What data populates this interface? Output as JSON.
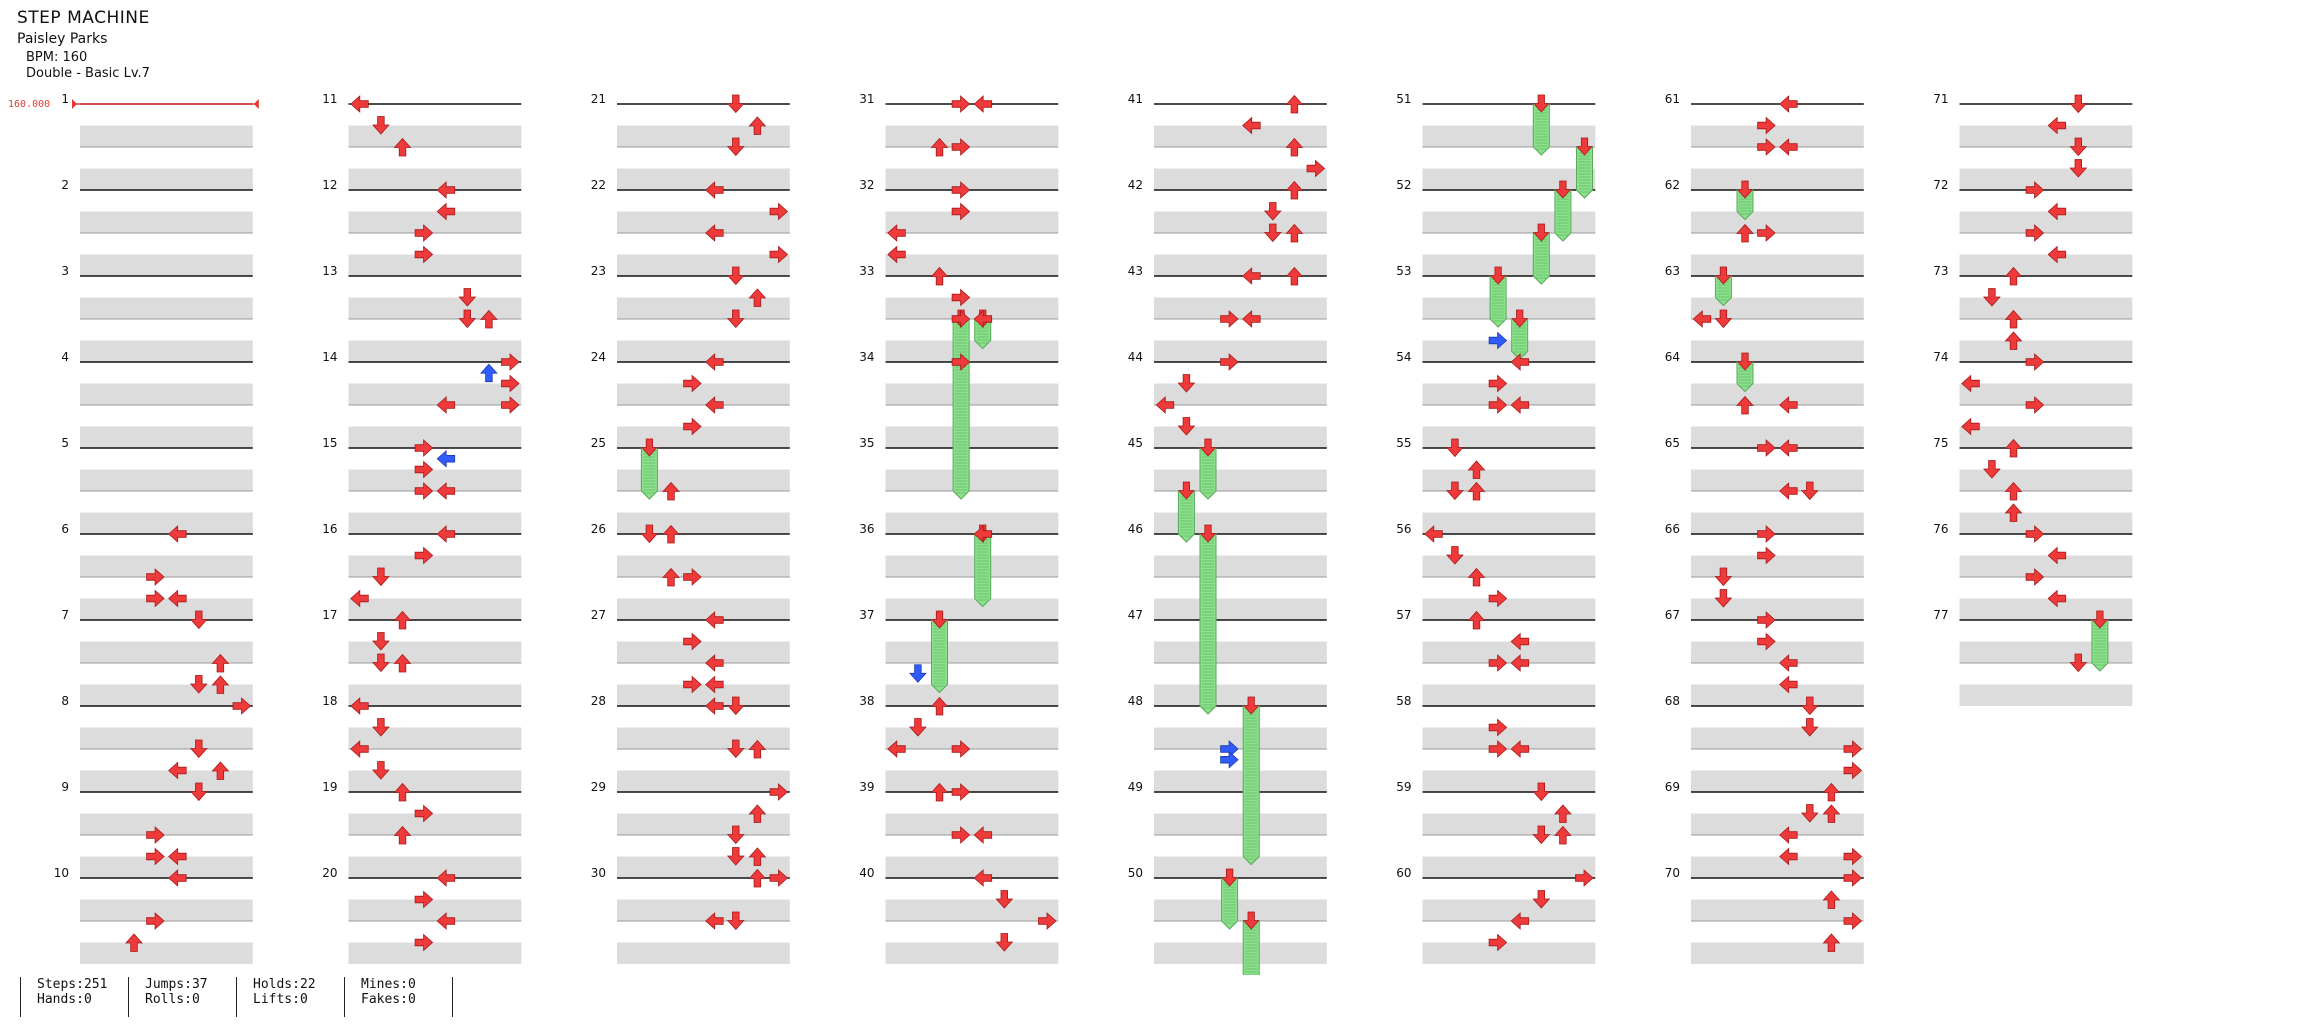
{
  "header": {
    "title": "STEP MACHINE",
    "song": "Paisley Parks",
    "bpm": "BPM: 160",
    "difficulty": "Double - Basic Lv.7"
  },
  "bpm_marker": "160.000",
  "colors": {
    "arrow_red": "#ee3a3a",
    "arrow_blue": "#2f5bff",
    "hold_green": "#8be08b",
    "row_shade": "#dcdcdc",
    "measure_line": "#111111",
    "bpm_red": "#e53935"
  },
  "lanes": 8,
  "measures_total": 77,
  "measures_per_column": 10,
  "notes": [
    {
      "m": 6,
      "r": 0,
      "l": [
        4
      ]
    },
    {
      "m": 6,
      "r": 1,
      "l": [
        3
      ]
    },
    {
      "m": 6,
      "r": 1.5,
      "l": [
        3,
        4
      ]
    },
    {
      "m": 7,
      "r": 0,
      "l": [
        5
      ]
    },
    {
      "m": 7,
      "r": 1,
      "l": [
        6
      ]
    },
    {
      "m": 7,
      "r": 1.5,
      "l": [
        5,
        6
      ]
    },
    {
      "m": 8,
      "r": 0,
      "l": [
        7
      ]
    },
    {
      "m": 8,
      "r": 1,
      "l": [
        5
      ]
    },
    {
      "m": 8,
      "r": 1.5,
      "l": [
        6
      ]
    },
    {
      "m": 9,
      "r": -0.5,
      "l": [
        4
      ]
    },
    {
      "m": 9,
      "r": 0,
      "l": [
        5
      ]
    },
    {
      "m": 9,
      "r": 1,
      "l": [
        3
      ]
    },
    {
      "m": 9,
      "r": 1.5,
      "l": [
        3,
        4
      ]
    },
    {
      "m": 10,
      "r": 0,
      "l": [
        4
      ]
    },
    {
      "m": 10,
      "r": 1,
      "l": [
        3
      ]
    },
    {
      "m": 10,
      "r": 1.5,
      "l": [
        2
      ]
    },
    {
      "m": 11,
      "r": 0,
      "l": [
        0
      ]
    },
    {
      "m": 11,
      "r": 0.5,
      "l": [
        1
      ]
    },
    {
      "m": 11,
      "r": 1,
      "l": [
        2
      ]
    },
    {
      "m": 12,
      "r": 0,
      "l": [
        4
      ]
    },
    {
      "m": 12,
      "r": 0.5,
      "l": [
        4
      ]
    },
    {
      "m": 12,
      "r": 1,
      "l": [
        3
      ]
    },
    {
      "m": 12,
      "r": 1.5,
      "l": [
        3
      ]
    },
    {
      "m": 13,
      "r": 0.5,
      "l": [
        5
      ]
    },
    {
      "m": 13,
      "r": 1,
      "l": [
        5,
        6
      ]
    },
    {
      "m": 14,
      "r": 0,
      "l": [
        7
      ]
    },
    {
      "m": 14,
      "r": 0.25,
      "l": [
        6
      ],
      "c": "b"
    },
    {
      "m": 14,
      "r": 0.5,
      "l": [
        7
      ]
    },
    {
      "m": 14,
      "r": 1,
      "l": [
        4,
        7
      ]
    },
    {
      "m": 15,
      "r": 0,
      "l": [
        3
      ]
    },
    {
      "m": 15,
      "r": 0.25,
      "l": [
        4
      ],
      "c": "b"
    },
    {
      "m": 15,
      "r": 0.5,
      "l": [
        3
      ]
    },
    {
      "m": 15,
      "r": 1,
      "l": [
        3,
        4
      ]
    },
    {
      "m": 16,
      "r": 0,
      "l": [
        4
      ]
    },
    {
      "m": 16,
      "r": 0.5,
      "l": [
        3
      ]
    },
    {
      "m": 16,
      "r": 1,
      "l": [
        1
      ]
    },
    {
      "m": 16,
      "r": 1.5,
      "l": [
        0
      ]
    },
    {
      "m": 17,
      "r": 0,
      "l": [
        2
      ]
    },
    {
      "m": 17,
      "r": 0.5,
      "l": [
        1
      ]
    },
    {
      "m": 17,
      "r": 1,
      "l": [
        1,
        2
      ]
    },
    {
      "m": 18,
      "r": 0,
      "l": [
        0
      ]
    },
    {
      "m": 18,
      "r": 0.5,
      "l": [
        1
      ]
    },
    {
      "m": 18,
      "r": 1,
      "l": [
        0
      ]
    },
    {
      "m": 18,
      "r": 1.5,
      "l": [
        1
      ]
    },
    {
      "m": 19,
      "r": 0,
      "l": [
        2
      ]
    },
    {
      "m": 19,
      "r": 0.5,
      "l": [
        3
      ]
    },
    {
      "m": 19,
      "r": 1,
      "l": [
        2
      ]
    },
    {
      "m": 20,
      "r": 0,
      "l": [
        4
      ]
    },
    {
      "m": 20,
      "r": 0.5,
      "l": [
        3
      ]
    },
    {
      "m": 20,
      "r": 1,
      "l": [
        4
      ]
    },
    {
      "m": 20,
      "r": 1.5,
      "l": [
        3
      ]
    },
    {
      "m": 21,
      "r": 0,
      "l": [
        5
      ]
    },
    {
      "m": 21,
      "r": 0.5,
      "l": [
        6
      ]
    },
    {
      "m": 21,
      "r": 1,
      "l": [
        5
      ]
    },
    {
      "m": 22,
      "r": 0,
      "l": [
        4
      ]
    },
    {
      "m": 22,
      "r": 0.5,
      "l": [
        7
      ]
    },
    {
      "m": 22,
      "r": 1,
      "l": [
        4
      ]
    },
    {
      "m": 22,
      "r": 1.5,
      "l": [
        7
      ]
    },
    {
      "m": 23,
      "r": 0,
      "l": [
        5
      ]
    },
    {
      "m": 23,
      "r": 0.5,
      "l": [
        6
      ]
    },
    {
      "m": 23,
      "r": 1,
      "l": [
        5
      ]
    },
    {
      "m": 24,
      "r": 0,
      "l": [
        4
      ]
    },
    {
      "m": 24,
      "r": 0.5,
      "l": [
        3
      ]
    },
    {
      "m": 24,
      "r": 1,
      "l": [
        4
      ]
    },
    {
      "m": 24,
      "r": 1.5,
      "l": [
        3
      ]
    },
    {
      "m": 25,
      "r": 1,
      "l": [
        2
      ]
    },
    {
      "m": 26,
      "r": 0,
      "l": [
        1,
        2
      ]
    },
    {
      "m": 26,
      "r": 1,
      "l": [
        2,
        3
      ]
    },
    {
      "m": 27,
      "r": 0,
      "l": [
        4
      ]
    },
    {
      "m": 27,
      "r": 0.5,
      "l": [
        3
      ]
    },
    {
      "m": 27,
      "r": 1,
      "l": [
        4
      ]
    },
    {
      "m": 27,
      "r": 1.5,
      "l": [
        3,
        4
      ]
    },
    {
      "m": 28,
      "r": 0,
      "l": [
        4,
        5
      ]
    },
    {
      "m": 28,
      "r": 1,
      "l": [
        5,
        6
      ]
    },
    {
      "m": 29,
      "r": 0,
      "l": [
        7
      ]
    },
    {
      "m": 29,
      "r": 0.5,
      "l": [
        6
      ]
    },
    {
      "m": 29,
      "r": 1,
      "l": [
        5
      ]
    },
    {
      "m": 29,
      "r": 1.5,
      "l": [
        5,
        6
      ]
    },
    {
      "m": 30,
      "r": 0,
      "l": [
        6,
        7
      ]
    },
    {
      "m": 30,
      "r": 1,
      "l": [
        4,
        5
      ]
    },
    {
      "m": 31,
      "r": 0,
      "l": [
        3,
        4
      ]
    },
    {
      "m": 31,
      "r": 1,
      "l": [
        2,
        3
      ]
    },
    {
      "m": 32,
      "r": 0,
      "l": [
        3
      ]
    },
    {
      "m": 32,
      "r": 0.5,
      "l": [
        3
      ]
    },
    {
      "m": 32,
      "r": 1,
      "l": [
        0
      ]
    },
    {
      "m": 32,
      "r": 1.5,
      "l": [
        0
      ]
    },
    {
      "m": 33,
      "r": 0,
      "l": [
        2
      ]
    },
    {
      "m": 33,
      "r": 0.5,
      "l": [
        3
      ]
    },
    {
      "m": 33,
      "r": 1,
      "l": [
        3,
        4
      ]
    },
    {
      "m": 34,
      "r": 0,
      "l": [
        3
      ]
    },
    {
      "m": 36,
      "r": 0,
      "l": [
        4
      ]
    },
    {
      "m": 37,
      "r": 1.25,
      "l": [
        1
      ],
      "c": "b"
    },
    {
      "m": 38,
      "r": 0,
      "l": [
        2
      ]
    },
    {
      "m": 38,
      "r": 0.5,
      "l": [
        1
      ]
    },
    {
      "m": 38,
      "r": 1,
      "l": [
        0,
        3
      ]
    },
    {
      "m": 39,
      "r": 0,
      "l": [
        2,
        3
      ]
    },
    {
      "m": 39,
      "r": 1,
      "l": [
        3,
        4
      ]
    },
    {
      "m": 40,
      "r": 0,
      "l": [
        4
      ]
    },
    {
      "m": 40,
      "r": 0.5,
      "l": [
        5
      ]
    },
    {
      "m": 40,
      "r": 1,
      "l": [
        7
      ]
    },
    {
      "m": 40,
      "r": 1.5,
      "l": [
        5
      ]
    },
    {
      "m": 41,
      "r": 0,
      "l": [
        6
      ]
    },
    {
      "m": 41,
      "r": 0.5,
      "l": [
        4
      ]
    },
    {
      "m": 41,
      "r": 1,
      "l": [
        6
      ]
    },
    {
      "m": 41,
      "r": 1.5,
      "l": [
        7
      ]
    },
    {
      "m": 42,
      "r": 0,
      "l": [
        6
      ]
    },
    {
      "m": 42,
      "r": 0.5,
      "l": [
        5
      ]
    },
    {
      "m": 42,
      "r": 1,
      "l": [
        5,
        6
      ]
    },
    {
      "m": 43,
      "r": 0,
      "l": [
        4,
        6
      ]
    },
    {
      "m": 43,
      "r": 1,
      "l": [
        3,
        4
      ]
    },
    {
      "m": 44,
      "r": 0,
      "l": [
        3
      ]
    },
    {
      "m": 44,
      "r": 0.5,
      "l": [
        1
      ]
    },
    {
      "m": 44,
      "r": 1,
      "l": [
        0
      ]
    },
    {
      "m": 44,
      "r": 1.5,
      "l": [
        1
      ]
    },
    {
      "m": 48,
      "r": 1,
      "l": [
        3
      ],
      "c": "b"
    },
    {
      "m": 48,
      "r": 1.25,
      "l": [
        3
      ],
      "c": "b"
    },
    {
      "m": 53,
      "r": 1.5,
      "l": [
        3
      ],
      "c": "b"
    },
    {
      "m": 54,
      "r": 0,
      "l": [
        4
      ]
    },
    {
      "m": 54,
      "r": 0.5,
      "l": [
        3
      ]
    },
    {
      "m": 54,
      "r": 1,
      "l": [
        3,
        4
      ]
    },
    {
      "m": 55,
      "r": 0,
      "l": [
        1
      ]
    },
    {
      "m": 55,
      "r": 0.5,
      "l": [
        2
      ]
    },
    {
      "m": 55,
      "r": 1,
      "l": [
        1,
        2
      ]
    },
    {
      "m": 56,
      "r": 0,
      "l": [
        0
      ]
    },
    {
      "m": 56,
      "r": 0.5,
      "l": [
        1
      ]
    },
    {
      "m": 56,
      "r": 1,
      "l": [
        2
      ]
    },
    {
      "m": 56,
      "r": 1.5,
      "l": [
        3
      ]
    },
    {
      "m": 57,
      "r": 0,
      "l": [
        2
      ]
    },
    {
      "m": 57,
      "r": 0.5,
      "l": [
        4
      ]
    },
    {
      "m": 57,
      "r": 1,
      "l": [
        3,
        4
      ]
    },
    {
      "m": 58,
      "r": 0.5,
      "l": [
        3
      ]
    },
    {
      "m": 58,
      "r": 1,
      "l": [
        3,
        4
      ]
    },
    {
      "m": 59,
      "r": 0,
      "l": [
        5
      ]
    },
    {
      "m": 59,
      "r": 0.5,
      "l": [
        6
      ]
    },
    {
      "m": 59,
      "r": 1,
      "l": [
        5,
        6
      ]
    },
    {
      "m": 60,
      "r": 0,
      "l": [
        7
      ]
    },
    {
      "m": 60,
      "r": 0.5,
      "l": [
        5
      ]
    },
    {
      "m": 60,
      "r": 1,
      "l": [
        4
      ]
    },
    {
      "m": 60,
      "r": 1.5,
      "l": [
        3
      ]
    },
    {
      "m": 61,
      "r": 0,
      "l": [
        4
      ]
    },
    {
      "m": 61,
      "r": 0.5,
      "l": [
        3
      ]
    },
    {
      "m": 61,
      "r": 1,
      "l": [
        3,
        4
      ]
    },
    {
      "m": 62,
      "r": 1,
      "l": [
        2,
        3
      ]
    },
    {
      "m": 63,
      "r": 1,
      "l": [
        0,
        1
      ]
    },
    {
      "m": 64,
      "r": 1,
      "l": [
        2,
        4
      ]
    },
    {
      "m": 65,
      "r": 0,
      "l": [
        3,
        4
      ]
    },
    {
      "m": 65,
      "r": 1,
      "l": [
        4,
        5
      ]
    },
    {
      "m": 66,
      "r": 0,
      "l": [
        3
      ]
    },
    {
      "m": 66,
      "r": 0.5,
      "l": [
        3
      ]
    },
    {
      "m": 66,
      "r": 1,
      "l": [
        1
      ]
    },
    {
      "m": 66,
      "r": 1.5,
      "l": [
        1
      ]
    },
    {
      "m": 67,
      "r": 0,
      "l": [
        3
      ]
    },
    {
      "m": 67,
      "r": 0.5,
      "l": [
        3
      ]
    },
    {
      "m": 67,
      "r": 1,
      "l": [
        4
      ]
    },
    {
      "m": 67,
      "r": 1.5,
      "l": [
        4
      ]
    },
    {
      "m": 68,
      "r": 0,
      "l": [
        5
      ]
    },
    {
      "m": 68,
      "r": 0.5,
      "l": [
        5
      ]
    },
    {
      "m": 68,
      "r": 1,
      "l": [
        7
      ]
    },
    {
      "m": 68,
      "r": 1.5,
      "l": [
        7
      ]
    },
    {
      "m": 69,
      "r": 0,
      "l": [
        6
      ]
    },
    {
      "m": 69,
      "r": 0.5,
      "l": [
        5,
        6
      ]
    },
    {
      "m": 69,
      "r": 1,
      "l": [
        4
      ]
    },
    {
      "m": 69,
      "r": 1.5,
      "l": [
        4,
        7
      ]
    },
    {
      "m": 70,
      "r": 0,
      "l": [
        7
      ]
    },
    {
      "m": 70,
      "r": 0.5,
      "l": [
        6
      ]
    },
    {
      "m": 70,
      "r": 1,
      "l": [
        7
      ]
    },
    {
      "m": 70,
      "r": 1.5,
      "l": [
        6
      ]
    },
    {
      "m": 71,
      "r": 0,
      "l": [
        5
      ]
    },
    {
      "m": 71,
      "r": 0.5,
      "l": [
        4
      ]
    },
    {
      "m": 71,
      "r": 1,
      "l": [
        5
      ]
    },
    {
      "m": 71,
      "r": 1.5,
      "l": [
        5
      ]
    },
    {
      "m": 72,
      "r": 0,
      "l": [
        3
      ]
    },
    {
      "m": 72,
      "r": 0.5,
      "l": [
        4
      ]
    },
    {
      "m": 72,
      "r": 1,
      "l": [
        3
      ]
    },
    {
      "m": 72,
      "r": 1.5,
      "l": [
        4
      ]
    },
    {
      "m": 73,
      "r": 0,
      "l": [
        2
      ]
    },
    {
      "m": 73,
      "r": 0.5,
      "l": [
        1
      ]
    },
    {
      "m": 73,
      "r": 1,
      "l": [
        2
      ]
    },
    {
      "m": 73,
      "r": 1.5,
      "l": [
        2
      ]
    },
    {
      "m": 74,
      "r": 0,
      "l": [
        3
      ]
    },
    {
      "m": 74,
      "r": 0.5,
      "l": [
        0
      ]
    },
    {
      "m": 74,
      "r": 1,
      "l": [
        3
      ]
    },
    {
      "m": 74,
      "r": 1.5,
      "l": [
        0
      ]
    },
    {
      "m": 75,
      "r": 0,
      "l": [
        2
      ]
    },
    {
      "m": 75,
      "r": 0.5,
      "l": [
        1
      ]
    },
    {
      "m": 75,
      "r": 1,
      "l": [
        2
      ]
    },
    {
      "m": 75,
      "r": 1.5,
      "l": [
        2
      ]
    },
    {
      "m": 76,
      "r": 0,
      "l": [
        3
      ]
    },
    {
      "m": 76,
      "r": 0.5,
      "l": [
        4
      ]
    },
    {
      "m": 76,
      "r": 1,
      "l": [
        3
      ]
    },
    {
      "m": 76,
      "r": 1.5,
      "l": [
        4
      ]
    },
    {
      "m": 77,
      "r": 1,
      "l": [
        5
      ]
    }
  ],
  "holds": [
    {
      "m": 25,
      "r": 0,
      "len": 1,
      "lane": 1
    },
    {
      "m": 33,
      "r": 1,
      "len": 0.5,
      "lane": 4
    },
    {
      "m": 33,
      "r": 1,
      "len": 4,
      "lane": 3
    },
    {
      "m": 36,
      "r": 0,
      "len": 1.5,
      "lane": 4
    },
    {
      "m": 37,
      "r": 0,
      "len": 1.5,
      "lane": 2
    },
    {
      "m": 45,
      "r": 0,
      "len": 1,
      "lane": 2
    },
    {
      "m": 45,
      "r": 1,
      "len": 1,
      "lane": 1
    },
    {
      "m": 46,
      "r": 0,
      "len": 4,
      "lane": 2
    },
    {
      "m": 48,
      "r": 0,
      "len": 3.5,
      "lane": 4
    },
    {
      "m": 50,
      "r": 0,
      "len": 1,
      "lane": 3
    },
    {
      "m": 50,
      "r": 1,
      "len": 1.5,
      "lane": 4
    },
    {
      "m": 51,
      "r": 0,
      "len": 1,
      "lane": 5
    },
    {
      "m": 51,
      "r": 1,
      "len": 1,
      "lane": 7
    },
    {
      "m": 52,
      "r": 0,
      "len": 1,
      "lane": 6
    },
    {
      "m": 52,
      "r": 1,
      "len": 1,
      "lane": 5
    },
    {
      "m": 53,
      "r": 0,
      "len": 1,
      "lane": 3
    },
    {
      "m": 53,
      "r": 1,
      "len": 0.75,
      "lane": 4
    },
    {
      "m": 62,
      "r": 0,
      "len": 0.5,
      "lane": 2
    },
    {
      "m": 63,
      "r": 0,
      "len": 0.5,
      "lane": 1
    },
    {
      "m": 64,
      "r": 0,
      "len": 0.5,
      "lane": 2
    },
    {
      "m": 77,
      "r": 0,
      "len": 1,
      "lane": 6
    }
  ],
  "stats": [
    {
      "line1": "Steps:251",
      "line2": "Hands:0"
    },
    {
      "line1": "Jumps:37",
      "line2": "Rolls:0"
    },
    {
      "line1": "Holds:22",
      "line2": "Lifts:0"
    },
    {
      "line1": "Mines:0",
      "line2": "Fakes:0"
    }
  ]
}
